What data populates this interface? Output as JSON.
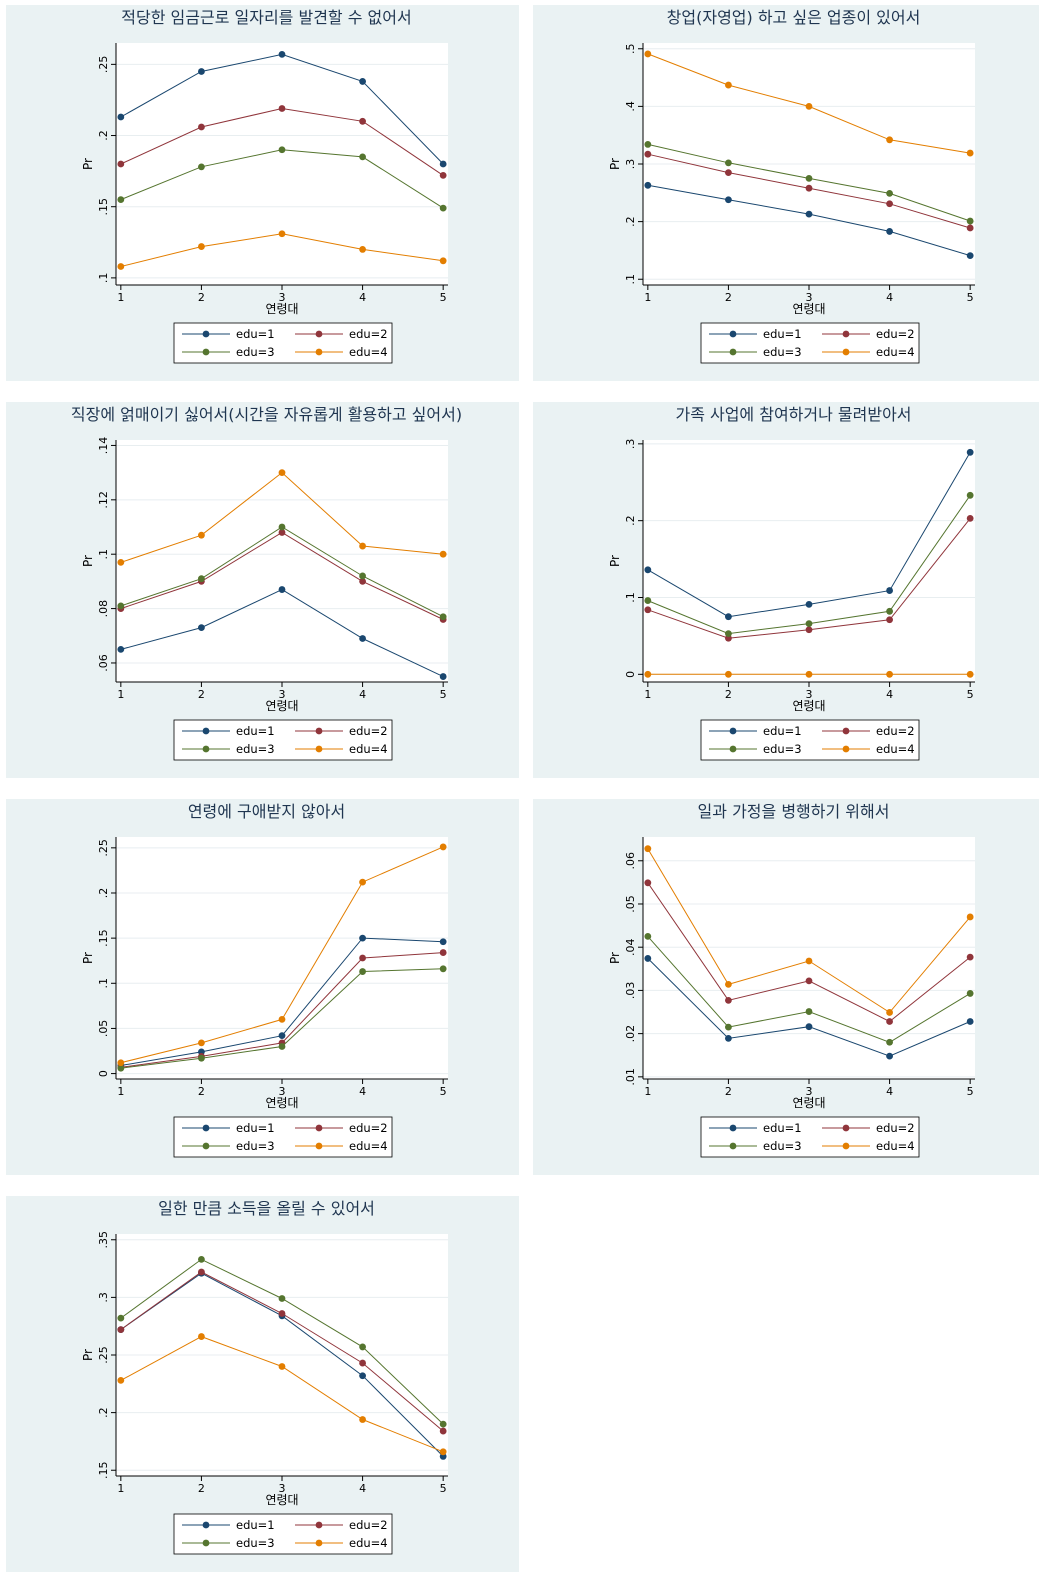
{
  "chart_data": [
    {
      "type": "line",
      "title": "적당한 임금근로 일자리를 발견할 수 없어서",
      "xlabel": "연령대",
      "ylabel": "Pr",
      "x": [
        1,
        2,
        3,
        4,
        5
      ],
      "x_ticks": [
        "1",
        "2",
        "3",
        "4",
        "5"
      ],
      "ylim": [
        0.095,
        0.265
      ],
      "y_ticks": [
        0.1,
        0.15,
        0.2,
        0.25
      ],
      "y_tick_labels": [
        ".1",
        ".15",
        ".2",
        ".25"
      ],
      "grid": true,
      "legend": "bottom",
      "series": [
        {
          "name": "edu=1",
          "values": [
            0.213,
            0.245,
            0.257,
            0.238,
            0.18
          ]
        },
        {
          "name": "edu=2",
          "values": [
            0.18,
            0.206,
            0.219,
            0.21,
            0.172
          ]
        },
        {
          "name": "edu=3",
          "values": [
            0.155,
            0.178,
            0.19,
            0.185,
            0.149
          ]
        },
        {
          "name": "edu=4",
          "values": [
            0.108,
            0.122,
            0.131,
            0.12,
            0.112
          ]
        }
      ]
    },
    {
      "type": "line",
      "title": "창업(자영업) 하고 싶은 업종이 있어서",
      "xlabel": "연령대",
      "ylabel": "Pr",
      "x": [
        1,
        2,
        3,
        4,
        5
      ],
      "x_ticks": [
        "1",
        "2",
        "3",
        "4",
        "5"
      ],
      "ylim": [
        0.09,
        0.51
      ],
      "y_ticks": [
        0.1,
        0.2,
        0.3,
        0.4,
        0.5
      ],
      "y_tick_labels": [
        ".1",
        ".2",
        ".3",
        ".4",
        ".5"
      ],
      "grid": true,
      "legend": "bottom",
      "series": [
        {
          "name": "edu=1",
          "values": [
            0.263,
            0.238,
            0.213,
            0.183,
            0.141
          ]
        },
        {
          "name": "edu=2",
          "values": [
            0.317,
            0.285,
            0.258,
            0.231,
            0.189
          ]
        },
        {
          "name": "edu=3",
          "values": [
            0.334,
            0.302,
            0.275,
            0.249,
            0.201
          ]
        },
        {
          "name": "edu=4",
          "values": [
            0.491,
            0.437,
            0.4,
            0.342,
            0.319
          ]
        }
      ]
    },
    {
      "type": "line",
      "title": "직장에 얽매이기 싫어서(시간을 자유롭게 활용하고 싶어서)",
      "xlabel": "연령대",
      "ylabel": "Pr",
      "x": [
        1,
        2,
        3,
        4,
        5
      ],
      "x_ticks": [
        "1",
        "2",
        "3",
        "4",
        "5"
      ],
      "ylim": [
        0.053,
        0.142
      ],
      "y_ticks": [
        0.06,
        0.08,
        0.1,
        0.12,
        0.14
      ],
      "y_tick_labels": [
        ".06",
        ".08",
        ".1",
        ".12",
        ".14"
      ],
      "grid": true,
      "legend": "bottom",
      "series": [
        {
          "name": "edu=1",
          "values": [
            0.065,
            0.073,
            0.087,
            0.069,
            0.055
          ]
        },
        {
          "name": "edu=2",
          "values": [
            0.08,
            0.09,
            0.108,
            0.09,
            0.076
          ]
        },
        {
          "name": "edu=3",
          "values": [
            0.081,
            0.091,
            0.11,
            0.092,
            0.077
          ]
        },
        {
          "name": "edu=4",
          "values": [
            0.097,
            0.107,
            0.13,
            0.103,
            0.1
          ]
        }
      ]
    },
    {
      "type": "line",
      "title": "가족 사업에 참여하거나 물려받아서",
      "xlabel": "연령대",
      "ylabel": "Pr",
      "x": [
        1,
        2,
        3,
        4,
        5
      ],
      "x_ticks": [
        "1",
        "2",
        "3",
        "4",
        "5"
      ],
      "ylim": [
        -0.01,
        0.305
      ],
      "y_ticks": [
        0,
        0.1,
        0.2,
        0.3
      ],
      "y_tick_labels": [
        "0",
        ".1",
        ".2",
        ".3"
      ],
      "grid": true,
      "legend": "bottom",
      "series": [
        {
          "name": "edu=1",
          "values": [
            0.136,
            0.075,
            0.091,
            0.109,
            0.289
          ]
        },
        {
          "name": "edu=2",
          "values": [
            0.084,
            0.047,
            0.058,
            0.071,
            0.203
          ]
        },
        {
          "name": "edu=3",
          "values": [
            0.096,
            0.053,
            0.066,
            0.082,
            0.233
          ]
        },
        {
          "name": "edu=4",
          "values": [
            0.0,
            0.0,
            0.0,
            0.0,
            0.0
          ]
        }
      ]
    },
    {
      "type": "line",
      "title": "연령에 구애받지 않아서",
      "xlabel": "연령대",
      "ylabel": "Pr",
      "x": [
        1,
        2,
        3,
        4,
        5
      ],
      "x_ticks": [
        "1",
        "2",
        "3",
        "4",
        "5"
      ],
      "ylim": [
        -0.006,
        0.262
      ],
      "y_ticks": [
        0,
        0.05,
        0.1,
        0.15,
        0.2,
        0.25
      ],
      "y_tick_labels": [
        "0",
        ".05",
        ".1",
        ".15",
        ".2",
        ".25"
      ],
      "grid": true,
      "legend": "bottom",
      "series": [
        {
          "name": "edu=1",
          "values": [
            0.009,
            0.024,
            0.042,
            0.15,
            0.146
          ]
        },
        {
          "name": "edu=2",
          "values": [
            0.007,
            0.019,
            0.034,
            0.128,
            0.134
          ]
        },
        {
          "name": "edu=3",
          "values": [
            0.006,
            0.017,
            0.03,
            0.113,
            0.116
          ]
        },
        {
          "name": "edu=4",
          "values": [
            0.012,
            0.034,
            0.06,
            0.212,
            0.251
          ]
        }
      ]
    },
    {
      "type": "line",
      "title": "일과 가정을 병행하기 위해서",
      "xlabel": "연령대",
      "ylabel": "Pr",
      "x": [
        1,
        2,
        3,
        4,
        5
      ],
      "x_ticks": [
        "1",
        "2",
        "3",
        "4",
        "5"
      ],
      "ylim": [
        0.0095,
        0.0655
      ],
      "y_ticks": [
        0.01,
        0.02,
        0.03,
        0.04,
        0.05,
        0.06
      ],
      "y_tick_labels": [
        ".01",
        ".02",
        ".03",
        ".04",
        ".05",
        ".06"
      ],
      "grid": true,
      "legend": "bottom",
      "series": [
        {
          "name": "edu=1",
          "values": [
            0.0374,
            0.0189,
            0.0216,
            0.0148,
            0.0228
          ]
        },
        {
          "name": "edu=2",
          "values": [
            0.0549,
            0.0277,
            0.0322,
            0.0228,
            0.0377
          ]
        },
        {
          "name": "edu=3",
          "values": [
            0.0425,
            0.0215,
            0.0251,
            0.018,
            0.0293
          ]
        },
        {
          "name": "edu=4",
          "values": [
            0.0628,
            0.0314,
            0.0368,
            0.0249,
            0.047
          ]
        }
      ]
    },
    {
      "type": "line",
      "title": "일한 만큼 소득을 올릴 수 있어서",
      "xlabel": "연령대",
      "ylabel": "Pr",
      "x": [
        1,
        2,
        3,
        4,
        5
      ],
      "x_ticks": [
        "1",
        "2",
        "3",
        "4",
        "5"
      ],
      "ylim": [
        0.145,
        0.355
      ],
      "y_ticks": [
        0.15,
        0.2,
        0.25,
        0.3,
        0.35
      ],
      "y_tick_labels": [
        ".15",
        ".2",
        ".25",
        ".3",
        ".35"
      ],
      "grid": true,
      "legend": "bottom",
      "series": [
        {
          "name": "edu=1",
          "values": [
            0.272,
            0.321,
            0.284,
            0.232,
            0.162
          ]
        },
        {
          "name": "edu=2",
          "values": [
            0.272,
            0.322,
            0.286,
            0.243,
            0.184
          ]
        },
        {
          "name": "edu=3",
          "values": [
            0.282,
            0.333,
            0.299,
            0.257,
            0.19
          ]
        },
        {
          "name": "edu=4",
          "values": [
            0.228,
            0.266,
            0.24,
            0.194,
            0.166
          ]
        }
      ]
    }
  ],
  "colors": {
    "panel_background": "#eaf2f3",
    "plot_background": "#ffffff",
    "grid": "#e8eef0",
    "axis": "#000000",
    "title": "#1f3550",
    "series": [
      "#1a476f",
      "#90353b",
      "#55752f",
      "#e37e00"
    ]
  }
}
